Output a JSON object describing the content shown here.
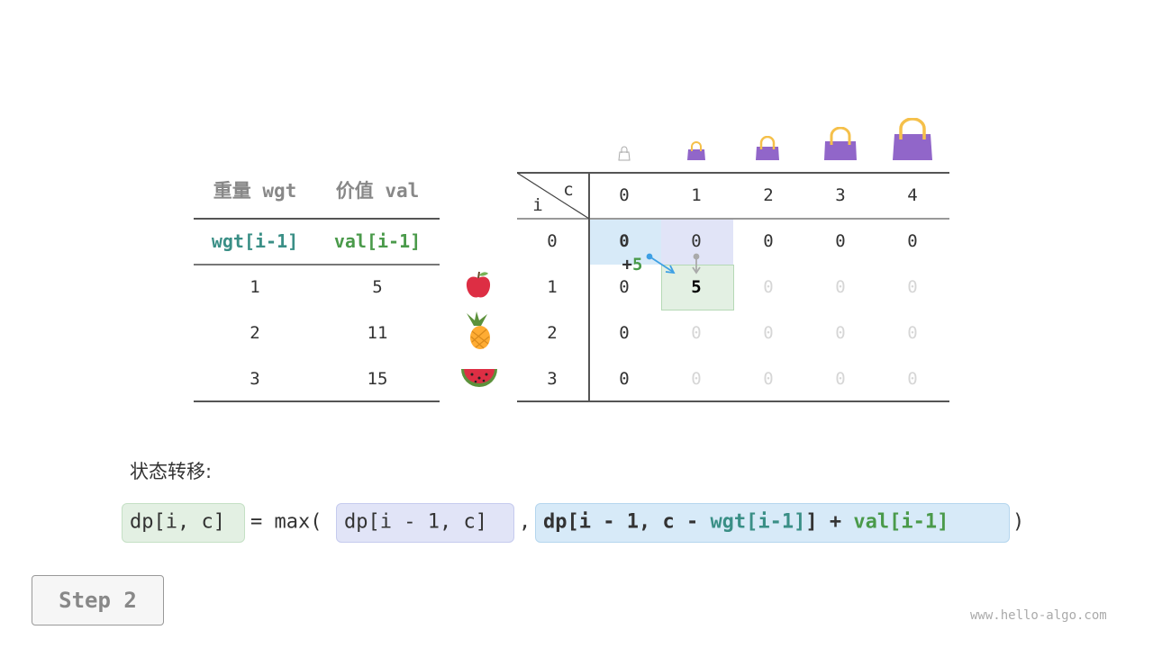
{
  "items_table": {
    "headers": [
      "重量 wgt",
      "价值 val"
    ],
    "subheaders": [
      "wgt[i-1]",
      "val[i-1]"
    ],
    "rows": [
      {
        "wgt": "1",
        "val": "5",
        "item": "apple"
      },
      {
        "wgt": "2",
        "val": "11",
        "item": "pineapple"
      },
      {
        "wgt": "3",
        "val": "15",
        "item": "watermelon"
      }
    ]
  },
  "dp_table": {
    "corner_c": "c",
    "corner_i": "i",
    "columns": [
      "0",
      "1",
      "2",
      "3",
      "4"
    ],
    "row_labels": [
      "0",
      "1",
      "2",
      "3"
    ],
    "cells": [
      [
        "0",
        "0",
        "0",
        "0",
        "0"
      ],
      [
        "0",
        "5",
        "0",
        "0",
        "0"
      ],
      [
        "0",
        "0",
        "0",
        "0",
        "0"
      ],
      [
        "0",
        "0",
        "0",
        "0",
        "0"
      ]
    ],
    "annotation": {
      "plus": "+",
      "value": "5"
    }
  },
  "formula": {
    "label": "状态转移:",
    "lhs": "dp[i, c]",
    "eq": "= max(",
    "opt1": "dp[i - 1, c]",
    "comma": ",",
    "opt2_a": "dp[i - 1, c - ",
    "opt2_wgt": "wgt[i-1]",
    "opt2_b": "] + ",
    "opt2_val": "val[i-1]",
    "close": ")"
  },
  "step_button": "Step 2",
  "watermark": "www.hello-algo.com",
  "colors": {
    "wgt": "#3a8f86",
    "val": "#4a9a4a",
    "blue_highlight": "#d7eaf8",
    "purple_highlight": "#e1e4f7",
    "green_highlight": "#e3f0e3",
    "bag": "#9166c9",
    "handle": "#f5c04a"
  }
}
